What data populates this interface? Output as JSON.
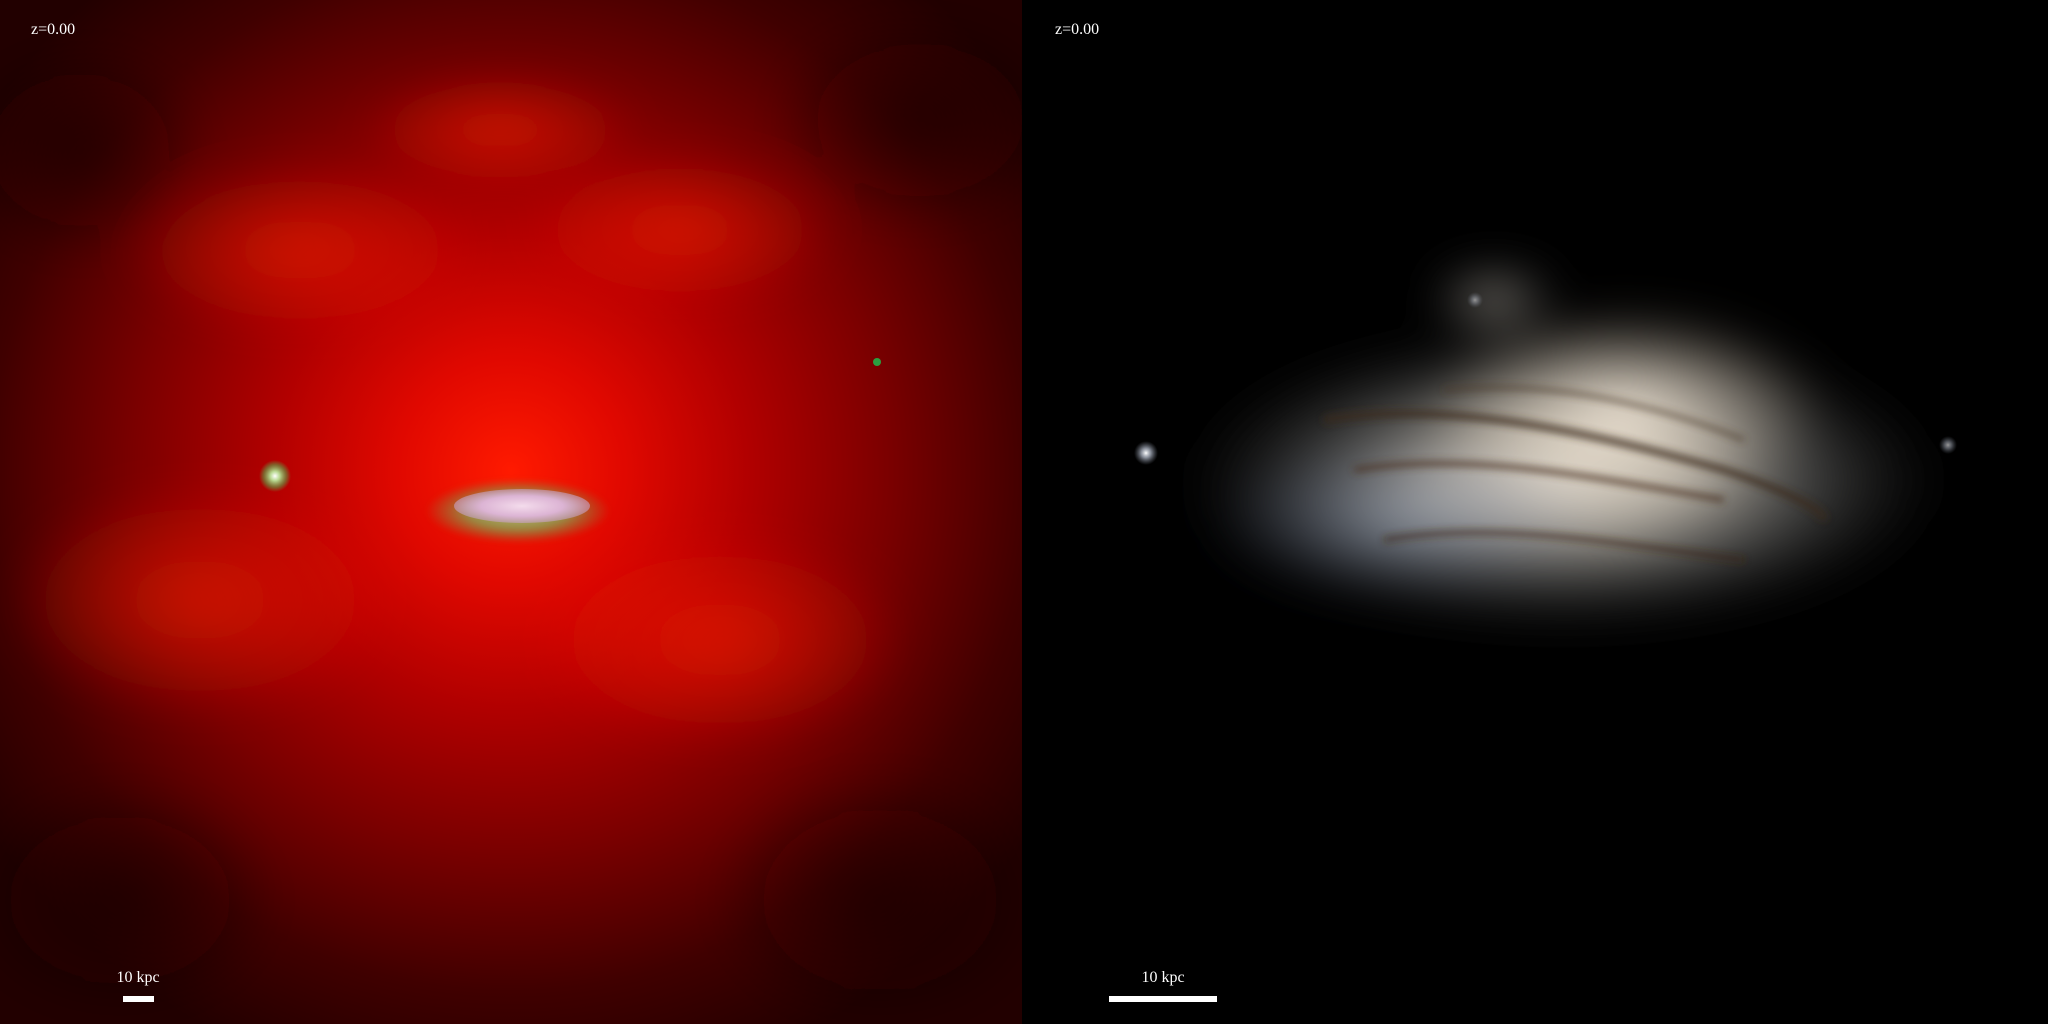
{
  "panels": [
    {
      "redshift_label": "z=0.00",
      "scalebar_label": "10 kpc"
    },
    {
      "redshift_label": "z=0.00",
      "scalebar_label": "10 kpc"
    }
  ],
  "colors": {
    "background": "#000000",
    "gas_halo": "#e00000",
    "gas_halo_outer": "#2a0000",
    "disk_core": "#e8c8e0",
    "disk_rim": "#8aa050",
    "stellar_light": "#e8e2d6",
    "dust_lane": "#3a2a1a",
    "text": "#ffffff"
  }
}
